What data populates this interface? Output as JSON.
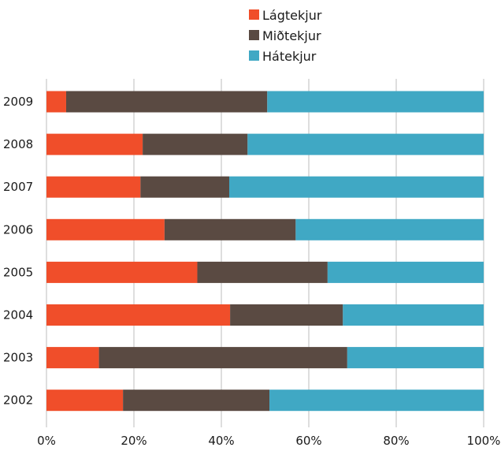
{
  "chart_data": {
    "type": "bar",
    "orientation": "horizontal",
    "stacking": "percent",
    "categories": [
      "2009",
      "2008",
      "2007",
      "2006",
      "2005",
      "2004",
      "2003",
      "2002"
    ],
    "series": [
      {
        "name": "Lágtekjur",
        "color": "#f04e2a",
        "values": [
          4.5,
          22,
          21.5,
          27,
          34.5,
          42,
          12,
          17.5
        ]
      },
      {
        "name": "Miðtekjur",
        "color": "#5a4a42",
        "values": [
          46,
          24,
          20.3,
          30,
          29.8,
          25.8,
          56.8,
          33.5
        ]
      },
      {
        "name": "Hátekjur",
        "color": "#40a8c4",
        "values": [
          49.5,
          54,
          58.2,
          43,
          35.7,
          32.2,
          31.2,
          49
        ]
      }
    ],
    "xlim": [
      0,
      100
    ],
    "x_ticks": [
      "0%",
      "20%",
      "40%",
      "60%",
      "80%",
      "100%"
    ],
    "grid": true,
    "legend_position": "top-center"
  }
}
